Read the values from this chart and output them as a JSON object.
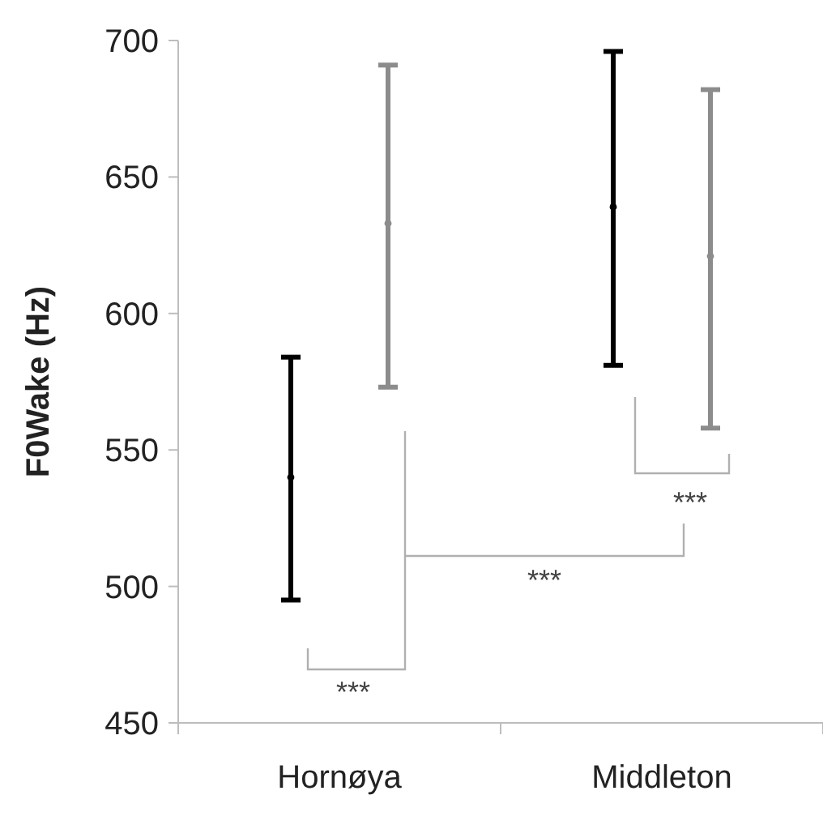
{
  "chart_data": {
    "type": "scatter",
    "ylabel": "F0Wake (Hz)",
    "categories": [
      "Hornøya",
      "Middleton"
    ],
    "ylim": [
      450,
      700
    ],
    "yticks": [
      450,
      500,
      550,
      600,
      650,
      700
    ],
    "marker": "circle",
    "series": [
      {
        "color": "#000000",
        "values": [
          540,
          639
        ],
        "errors": [
          [
            495,
            584
          ],
          [
            581,
            696
          ]
        ]
      },
      {
        "color": "#8c8c8c",
        "values": [
          633,
          621
        ],
        "errors": [
          [
            573,
            691
          ],
          [
            558,
            682
          ]
        ]
      }
    ],
    "annotations": [
      "***",
      "***",
      "***"
    ]
  }
}
